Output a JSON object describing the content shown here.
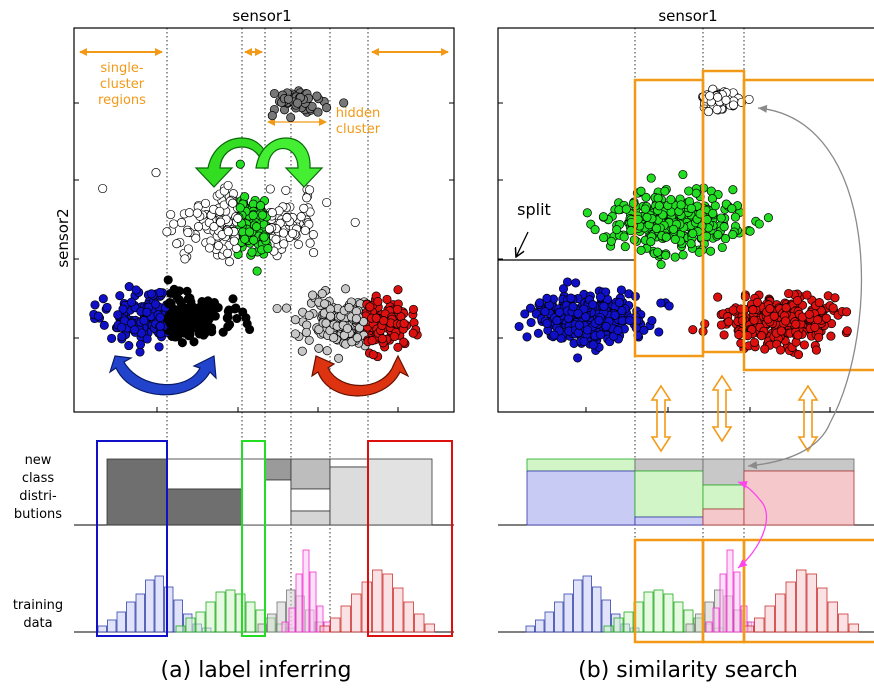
{
  "left_panel": {
    "x_label": "sensor1",
    "y_label": "sensor2",
    "annotations": {
      "single_cluster_line1": "single-",
      "single_cluster_line2": "cluster",
      "single_cluster_line3": "regions",
      "hidden_line1": "hidden",
      "hidden_line2": "cluster"
    },
    "row_labels": {
      "new_line1": "new",
      "new_line2": "class",
      "new_line3": "distri-",
      "new_line4": "butions",
      "train_line1": "training",
      "train_line2": "data"
    },
    "caption": "(a) label inferring"
  },
  "right_panel": {
    "x_label": "sensor1",
    "annotations": {
      "split": "split"
    },
    "caption": "(b) similarity search"
  },
  "colors": {
    "blue": "#1010c8",
    "black": "#000000",
    "green": "#22dd22",
    "red": "#dd1010",
    "light_gray": "#c8c8c8",
    "dark_gray": "#707070",
    "orange": "#f29a17",
    "magenta": "#ff44ee",
    "arrow_green": "#33dd22",
    "arrow_blue": "#2244cc",
    "arrow_red": "#dd3311"
  }
}
